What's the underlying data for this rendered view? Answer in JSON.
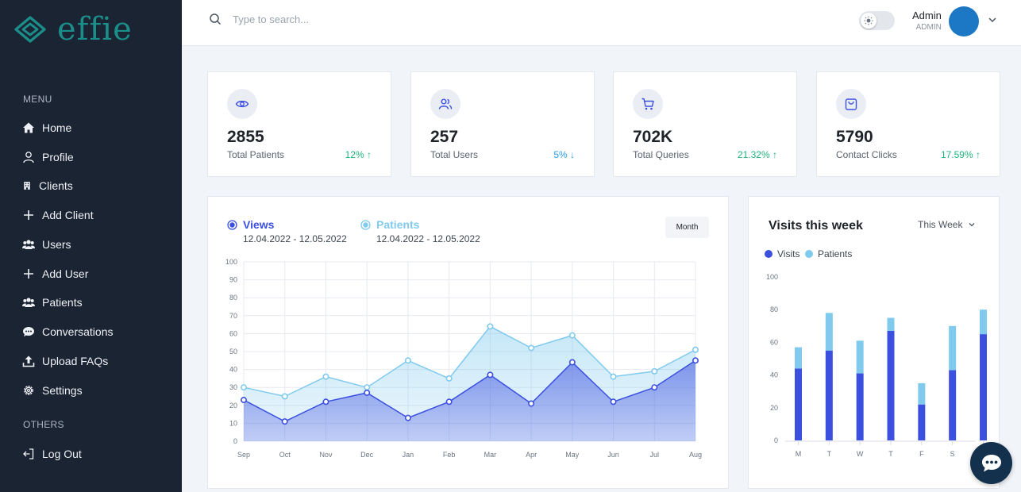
{
  "brand": {
    "name": "effie"
  },
  "sidebar": {
    "menu_heading": "MENU",
    "others_heading": "OTHERS",
    "items": [
      {
        "label": "Home",
        "icon": "home-icon"
      },
      {
        "label": "Profile",
        "icon": "user-icon"
      },
      {
        "label": "Clients",
        "icon": "building-icon"
      },
      {
        "label": "Add Client",
        "icon": "plus-icon"
      },
      {
        "label": "Users",
        "icon": "users-icon"
      },
      {
        "label": "Add User",
        "icon": "plus-icon"
      },
      {
        "label": "Patients",
        "icon": "users-icon"
      },
      {
        "label": "Conversations",
        "icon": "chat-bubble-icon"
      },
      {
        "label": "Upload FAQs",
        "icon": "upload-icon"
      },
      {
        "label": "Settings",
        "icon": "gear-icon"
      }
    ],
    "logout_label": "Log Out"
  },
  "header": {
    "search_placeholder": "Type to search...",
    "user_name": "Admin",
    "user_role": "ADMIN"
  },
  "stats": [
    {
      "value": "2855",
      "label": "Total Patients",
      "change": "12%",
      "direction": "up",
      "icon": "eye-icon"
    },
    {
      "value": "257",
      "label": "Total Users",
      "change": "5%",
      "direction": "down",
      "icon": "users-icon"
    },
    {
      "value": "702K",
      "label": "Total Queries",
      "change": "21.32%",
      "direction": "up",
      "icon": "cart-icon"
    },
    {
      "value": "5790",
      "label": "Contact Clicks",
      "change": "17.59%",
      "direction": "up",
      "icon": "bag-icon"
    }
  ],
  "area_chart": {
    "legend": [
      {
        "name": "Views",
        "range": "12.04.2022 - 12.05.2022",
        "color": "#3c50e0"
      },
      {
        "name": "Patients",
        "range": "12.04.2022 - 12.05.2022",
        "color": "#80caee"
      }
    ],
    "period_button": "Month"
  },
  "visits_panel": {
    "title": "Visits this week",
    "period_select": "This Week",
    "legend": [
      {
        "name": "Visits",
        "color": "#3c50e0"
      },
      {
        "name": "Patients",
        "color": "#80caee"
      }
    ]
  },
  "chart_data": [
    {
      "type": "area",
      "x": [
        "Sep",
        "Oct",
        "Nov",
        "Dec",
        "Jan",
        "Feb",
        "Mar",
        "Apr",
        "May",
        "Jun",
        "Jul",
        "Aug"
      ],
      "series": [
        {
          "name": "Patients",
          "values": [
            30,
            25,
            36,
            30,
            45,
            35,
            64,
            52,
            59,
            36,
            39,
            51
          ]
        },
        {
          "name": "Views",
          "values": [
            23,
            11,
            22,
            27,
            13,
            22,
            37,
            21,
            44,
            22,
            30,
            45
          ]
        }
      ],
      "ylim": [
        0,
        100
      ],
      "yticks": [
        0,
        10,
        20,
        30,
        40,
        50,
        60,
        70,
        80,
        90,
        100
      ],
      "grid": true
    },
    {
      "type": "bar",
      "stacked": true,
      "categories": [
        "M",
        "T",
        "W",
        "T",
        "F",
        "S",
        "S"
      ],
      "series": [
        {
          "name": "Visits",
          "values": [
            44,
            55,
            41,
            67,
            22,
            43,
            65
          ]
        },
        {
          "name": "Patients",
          "values": [
            13,
            23,
            20,
            8,
            13,
            27,
            15
          ]
        }
      ],
      "ylim": [
        0,
        100
      ],
      "yticks": [
        0,
        20,
        40,
        60,
        80,
        100
      ]
    }
  ]
}
